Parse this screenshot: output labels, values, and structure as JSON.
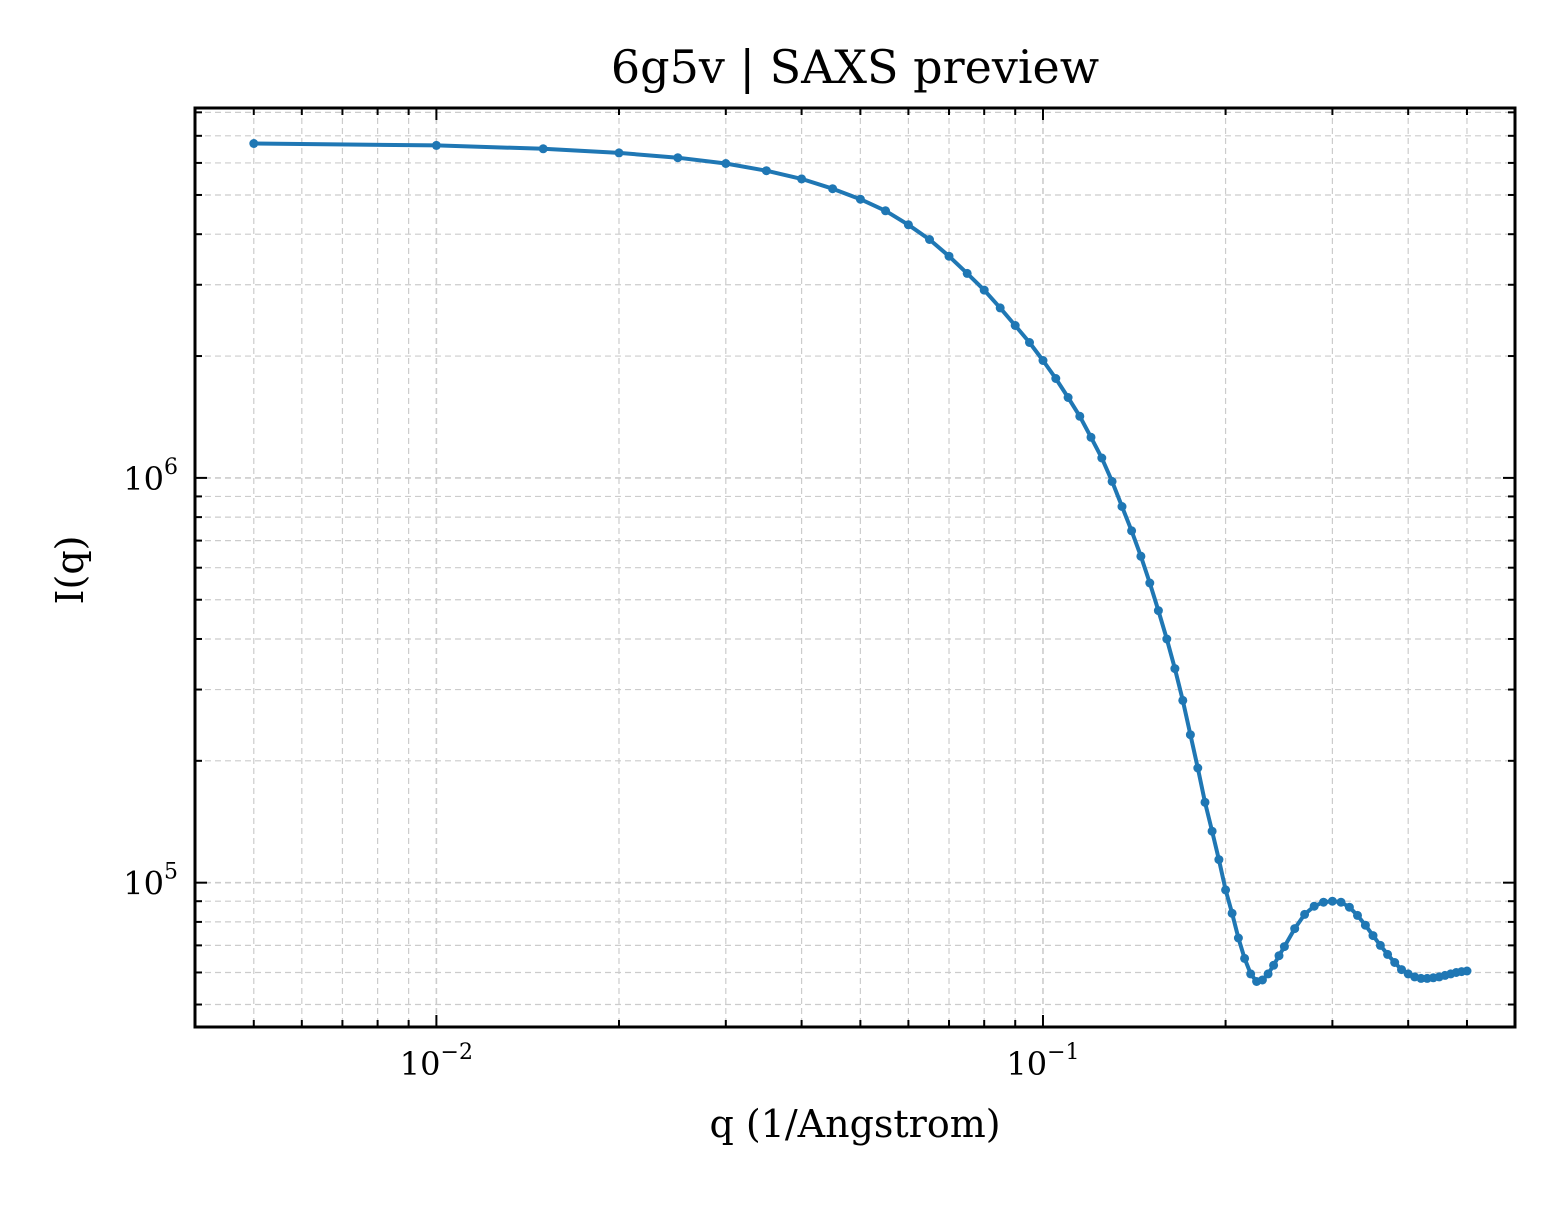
{
  "chart_data": {
    "type": "line",
    "title": "6g5v | SAXS preview",
    "xlabel": "q (1/Angstrom)",
    "ylabel": "I(q)",
    "xscale": "log",
    "yscale": "log",
    "xlim": [
      0.004,
      0.6
    ],
    "ylim": [
      44000,
      8200000
    ],
    "grid": true,
    "colors": {
      "series": "#1f77b4",
      "grid": "#cccccc",
      "axes": "#000000"
    },
    "x_ticks": [
      {
        "value": 0.01,
        "base": "10",
        "exp": "−2"
      },
      {
        "value": 0.1,
        "base": "10",
        "exp": "−1"
      }
    ],
    "y_ticks": [
      {
        "value": 100000,
        "base": "10",
        "exp": "5"
      },
      {
        "value": 1000000,
        "base": "10",
        "exp": "6"
      }
    ],
    "series": [
      {
        "x": [
          0.005,
          0.01,
          0.015,
          0.02,
          0.025,
          0.03,
          0.035,
          0.04,
          0.045,
          0.05,
          0.055,
          0.06,
          0.065,
          0.07,
          0.075,
          0.08,
          0.085,
          0.09,
          0.095,
          0.1,
          0.105,
          0.11,
          0.115,
          0.12,
          0.125,
          0.13,
          0.135,
          0.14,
          0.145,
          0.15,
          0.155,
          0.16,
          0.165,
          0.17,
          0.175,
          0.18,
          0.185,
          0.19,
          0.195,
          0.2,
          0.205,
          0.21,
          0.215,
          0.22,
          0.225,
          0.23,
          0.235,
          0.24,
          0.245,
          0.25,
          0.26,
          0.27,
          0.28,
          0.29,
          0.3,
          0.31,
          0.32,
          0.33,
          0.34,
          0.35,
          0.36,
          0.37,
          0.38,
          0.39,
          0.4,
          0.41,
          0.42,
          0.43,
          0.44,
          0.45,
          0.46,
          0.47,
          0.48,
          0.49,
          0.5
        ],
        "y": [
          6700000,
          6630000,
          6500000,
          6350000,
          6180000,
          5980000,
          5740000,
          5480000,
          5180000,
          4880000,
          4570000,
          4220000,
          3880000,
          3530000,
          3200000,
          2910000,
          2630000,
          2380000,
          2160000,
          1950000,
          1760000,
          1580000,
          1420000,
          1260000,
          1120000,
          980000,
          850000,
          740000,
          640000,
          550000,
          470000,
          400000,
          338000,
          282000,
          232000,
          192000,
          158000,
          134000,
          114000,
          96000,
          84000,
          73000,
          65000,
          59500,
          57000,
          57500,
          59500,
          62500,
          66000,
          69500,
          77000,
          83500,
          87500,
          89500,
          90000,
          89500,
          87000,
          83000,
          78500,
          74000,
          70000,
          66500,
          63500,
          61000,
          59500,
          58500,
          58000,
          58000,
          58200,
          58500,
          59000,
          59500,
          60000,
          60300,
          60500
        ]
      }
    ]
  }
}
